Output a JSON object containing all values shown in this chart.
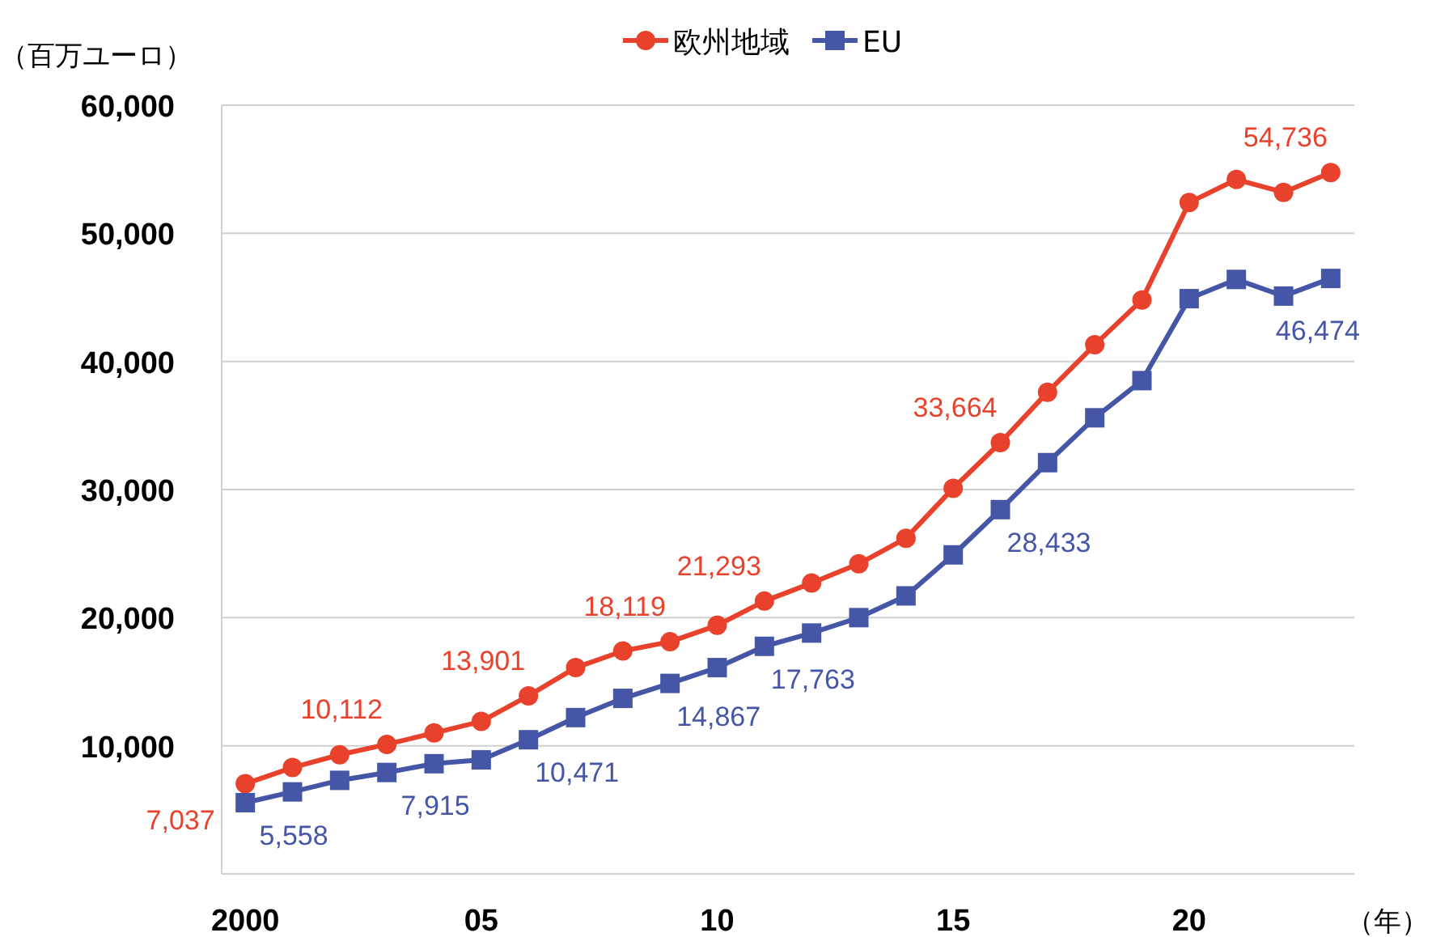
{
  "chart_data": {
    "type": "line",
    "ylabel": "（百万ユーロ）",
    "xlabel": "（年）",
    "x": [
      2000,
      2001,
      2002,
      2003,
      2004,
      2005,
      2006,
      2007,
      2008,
      2009,
      2010,
      2011,
      2012,
      2013,
      2014,
      2015,
      2016,
      2017,
      2018,
      2019,
      2020,
      2021,
      2022,
      2023
    ],
    "series": [
      {
        "name": "欧州地域",
        "color": "#e8412c",
        "marker": "circle",
        "values": [
          7037,
          8300,
          9300,
          10112,
          11000,
          11900,
          13901,
          16100,
          17400,
          18119,
          19400,
          21293,
          22700,
          24200,
          26200,
          30100,
          33664,
          37600,
          41300,
          44800,
          52400,
          54200,
          53200,
          54736
        ],
        "value_labels": [
          "7,037",
          null,
          null,
          "10,112",
          null,
          null,
          "13,901",
          null,
          null,
          "18,119",
          null,
          "21,293",
          null,
          null,
          null,
          null,
          "33,664",
          null,
          null,
          null,
          null,
          null,
          null,
          "54,736"
        ]
      },
      {
        "name": "EU",
        "color": "#4656a6",
        "marker": "square",
        "values": [
          5558,
          6400,
          7300,
          7915,
          8600,
          8900,
          10471,
          12200,
          13700,
          14867,
          16100,
          17763,
          18800,
          20000,
          21700,
          24900,
          28433,
          32100,
          35600,
          38500,
          44900,
          46400,
          45100,
          46474
        ],
        "value_labels": [
          "5,558",
          null,
          null,
          "7,915",
          null,
          null,
          "10,471",
          null,
          null,
          "14,867",
          null,
          "17,763",
          null,
          null,
          null,
          null,
          "28,433",
          null,
          null,
          null,
          null,
          null,
          null,
          "46,474"
        ]
      }
    ],
    "xlim": [
      1999.5,
      2023.5
    ],
    "ylim": [
      0,
      60000
    ],
    "xticks": [
      {
        "value": 2000,
        "label": "2000"
      },
      {
        "value": 2005,
        "label": "05"
      },
      {
        "value": 2010,
        "label": "10"
      },
      {
        "value": 2015,
        "label": "15"
      },
      {
        "value": 2020,
        "label": "20"
      }
    ],
    "yticks": [
      {
        "value": 10000,
        "label": "10,000"
      },
      {
        "value": 20000,
        "label": "20,000"
      },
      {
        "value": 30000,
        "label": "30,000"
      },
      {
        "value": 40000,
        "label": "40,000"
      },
      {
        "value": 50000,
        "label": "50,000"
      },
      {
        "value": 60000,
        "label": "60,000"
      }
    ],
    "grid": "y",
    "legend": "top",
    "line_style": "solid"
  }
}
